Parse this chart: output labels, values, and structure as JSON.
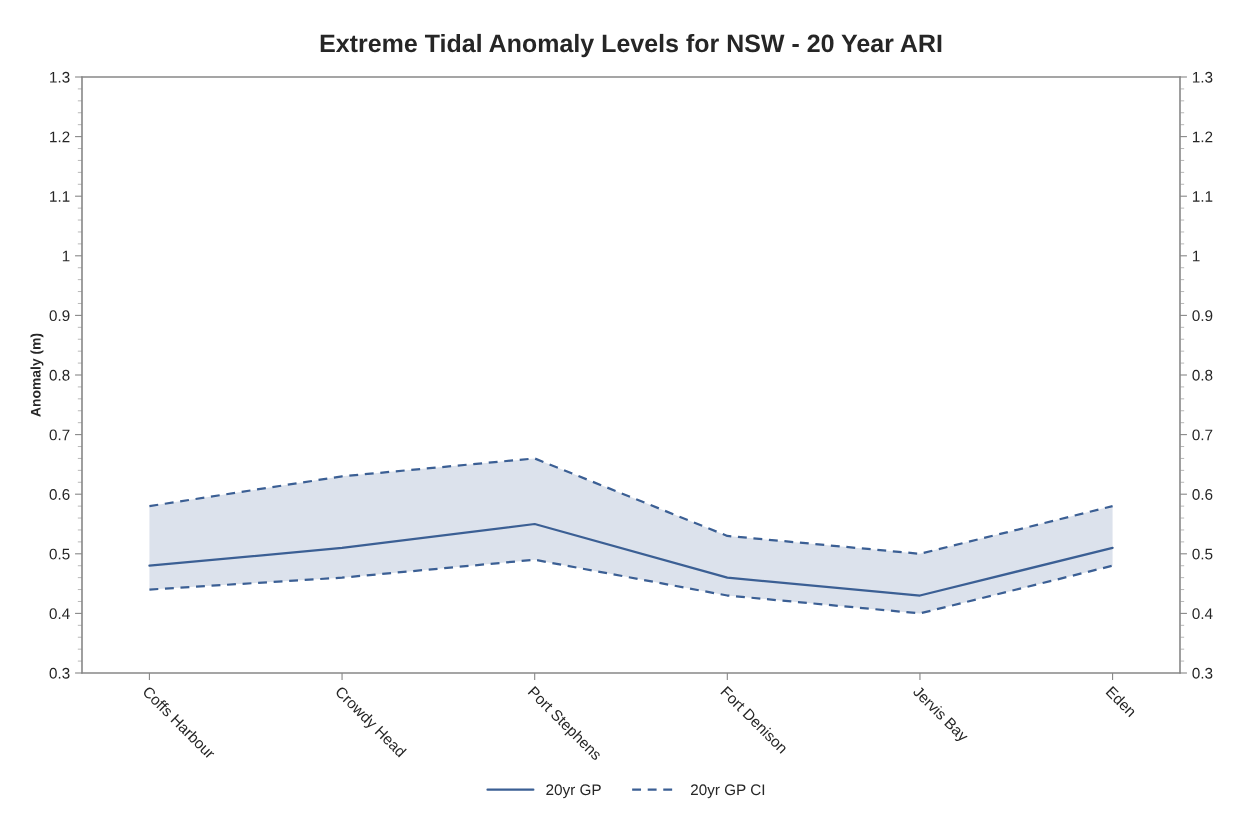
{
  "chart_data": {
    "type": "line",
    "title": "Extreme Tidal Anomaly Levels for NSW - 20 Year ARI",
    "ylabel": "Anomaly (m)",
    "categories": [
      "Coffs Harbour",
      "Crowdy Head",
      "Port Stephens",
      "Fort Denison",
      "Jervis Bay",
      "Eden"
    ],
    "series": [
      {
        "name": "20yr GP",
        "color": "#3b5f94",
        "line_style": "solid",
        "values": [
          0.48,
          0.51,
          0.55,
          0.46,
          0.43,
          0.51
        ],
        "lower": [
          0.44,
          0.46,
          0.49,
          0.43,
          0.4,
          0.48
        ],
        "upper": [
          0.58,
          0.63,
          0.66,
          0.53,
          0.5,
          0.58
        ]
      },
      {
        "name": "20yr GP CI",
        "color": "#3b5f94",
        "line_style": "dashed",
        "values": [
          0.58,
          0.63,
          0.66,
          0.53,
          0.5,
          0.58
        ]
      },
      {
        "color": "#3b5f94",
        "line_style": "dashed",
        "values": [
          0.44,
          0.46,
          0.49,
          0.43,
          0.4,
          0.48
        ]
      }
    ],
    "ylim": [
      0.3,
      1.3
    ],
    "yticks": [
      0.3,
      0.4,
      0.5,
      0.6,
      0.7,
      0.8,
      0.9,
      1,
      1.1,
      1.2,
      1.3
    ],
    "y2lim": [
      0.3,
      1.3
    ],
    "y2ticks": [
      0.3,
      0.4,
      0.5,
      0.6,
      0.7,
      0.8,
      0.9,
      1,
      1.1,
      1.2,
      1.3
    ],
    "grid": false,
    "legend": "bottom",
    "marker": "none"
  }
}
